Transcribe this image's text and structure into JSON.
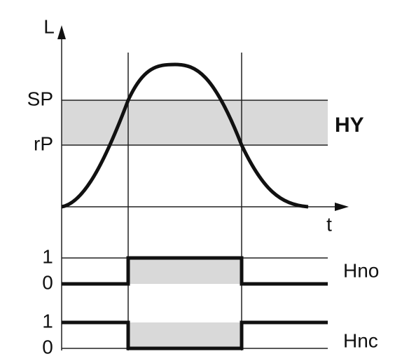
{
  "axes": {
    "y_label": "L",
    "x_label": "t"
  },
  "levels": {
    "sp": "SP",
    "rp": "rP",
    "hysteresis": "HY"
  },
  "outputs": [
    {
      "name": "Hno",
      "high": "1",
      "low": "0"
    },
    {
      "name": "Hnc",
      "high": "1",
      "low": "0"
    }
  ]
}
